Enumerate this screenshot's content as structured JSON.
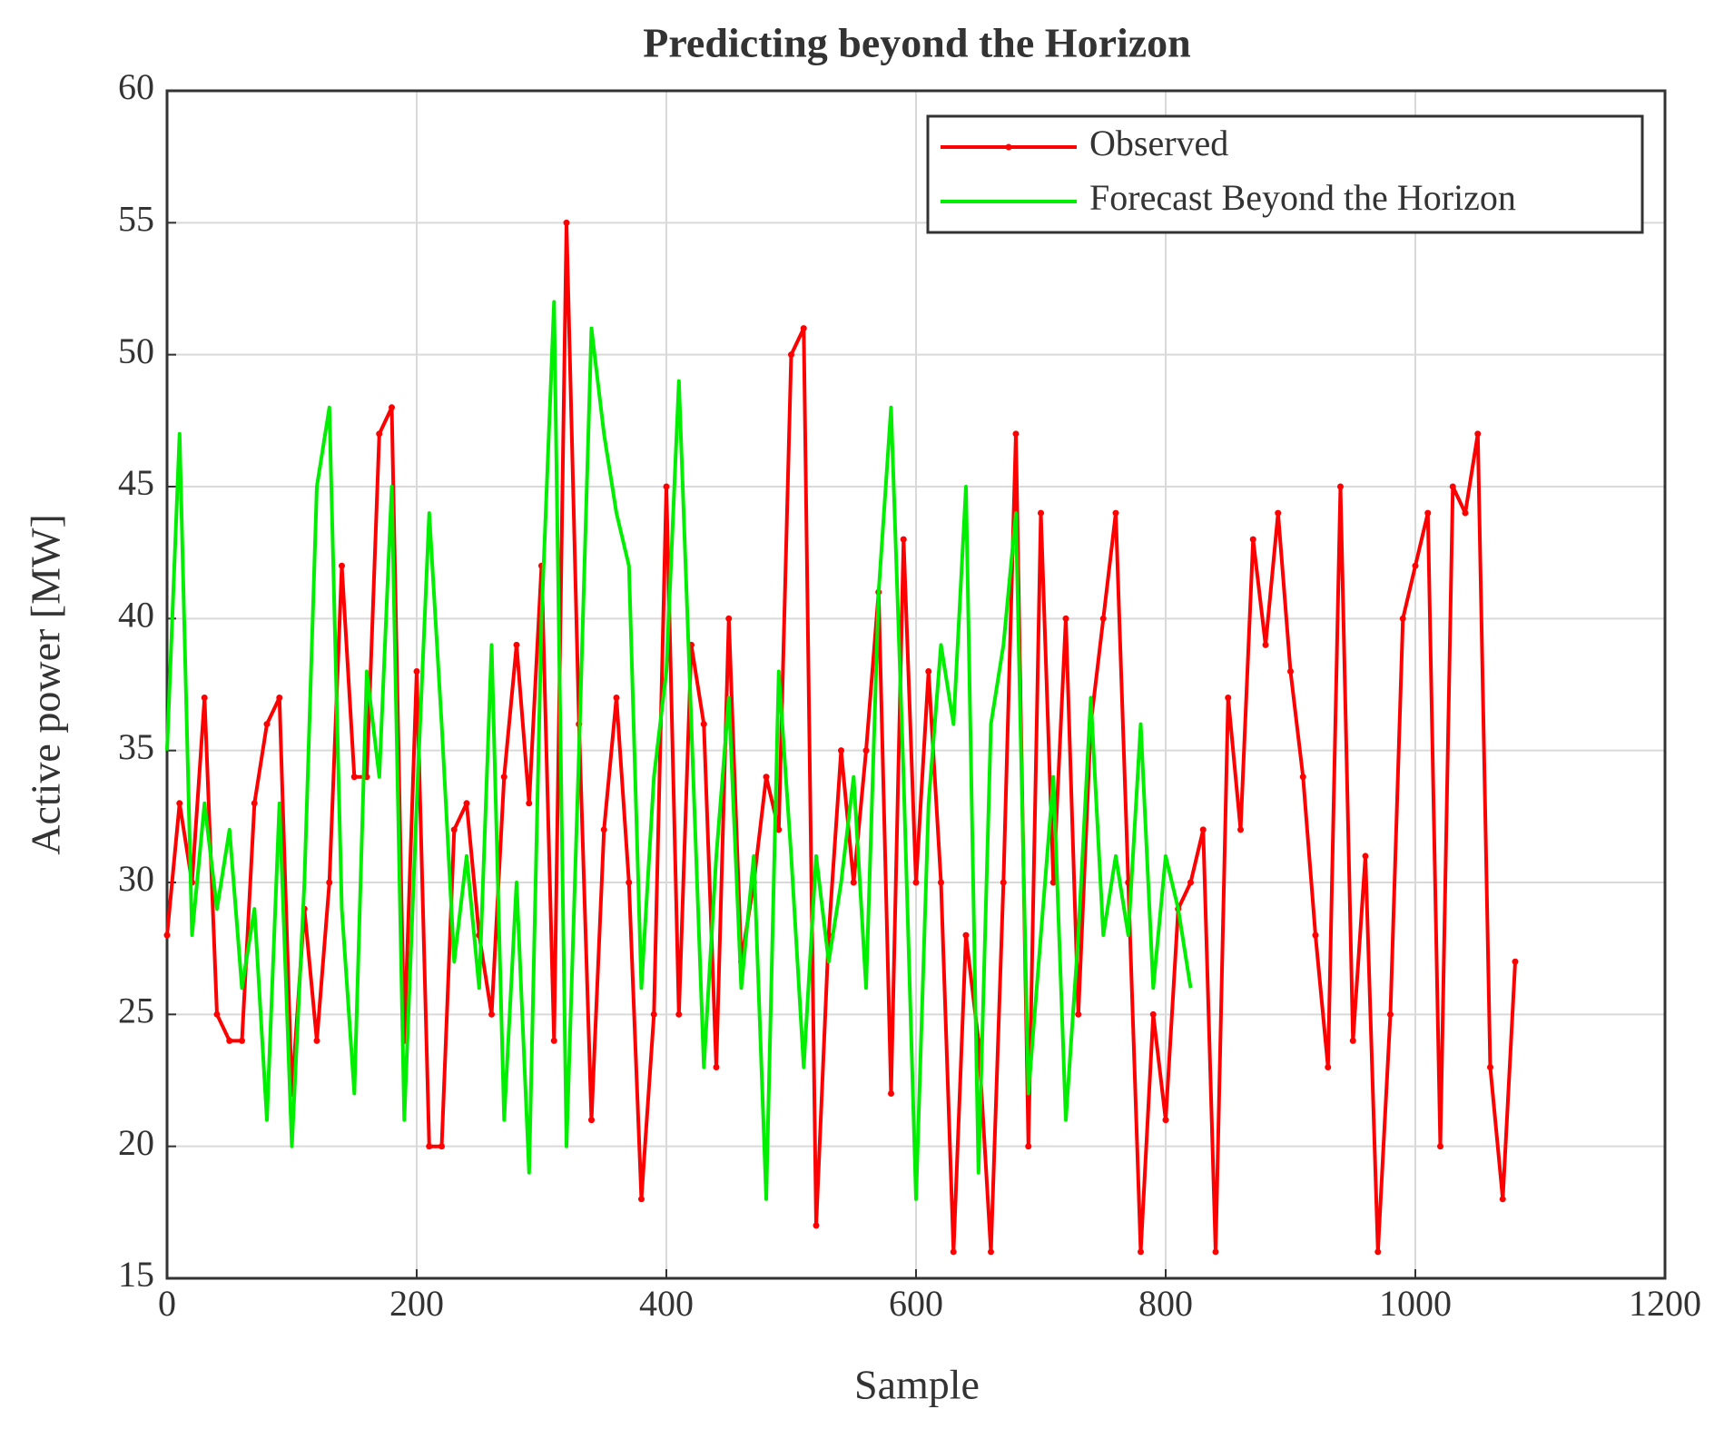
{
  "chart_data": {
    "type": "line",
    "title": "Predicting beyond the Horizon",
    "xlabel": "Sample",
    "ylabel": "Active power  [MW]",
    "x": [
      0,
      10,
      20,
      30,
      40,
      50,
      60,
      70,
      80,
      90,
      100,
      110,
      120,
      130,
      140,
      150,
      160,
      170,
      180,
      190,
      200,
      210,
      220,
      230,
      240,
      250,
      260,
      270,
      280,
      290,
      300,
      310,
      320,
      330,
      340,
      350,
      360,
      370,
      380,
      390,
      400,
      410,
      420,
      430,
      440,
      450,
      460,
      470,
      480,
      490,
      500,
      510,
      520,
      530,
      540,
      550,
      560,
      570,
      580,
      590,
      600,
      610,
      620,
      630,
      640,
      650,
      660,
      670,
      680,
      690,
      700,
      710,
      720,
      730,
      740,
      750,
      760,
      770,
      780,
      790,
      800,
      810,
      820,
      830,
      840,
      850,
      860,
      870,
      880,
      890,
      900,
      910,
      920,
      930,
      940,
      950,
      960,
      970,
      980,
      990,
      1000,
      1010,
      1020,
      1030,
      1040,
      1050,
      1060,
      1070,
      1080
    ],
    "series": [
      {
        "name": "Observed",
        "color": "#ff0000",
        "marker": true,
        "values": [
          28,
          33,
          30,
          37,
          25,
          24,
          24,
          33,
          36,
          37,
          22,
          29,
          24,
          30,
          42,
          34,
          34,
          47,
          48,
          24,
          38,
          20,
          20,
          32,
          33,
          28,
          25,
          34,
          39,
          33,
          42,
          24,
          55,
          36,
          21,
          32,
          37,
          30,
          18,
          25,
          45,
          25,
          39,
          36,
          23,
          40,
          27,
          30,
          34,
          32,
          50,
          51,
          17,
          28,
          35,
          30,
          35,
          41,
          22,
          43,
          30,
          38,
          30,
          16,
          28,
          24,
          16,
          30,
          47,
          20,
          44,
          30,
          40,
          25,
          36,
          40,
          44,
          30,
          16,
          25,
          21,
          29,
          30,
          32,
          16,
          37,
          32,
          43,
          39,
          44,
          38,
          34,
          28,
          23,
          45,
          24,
          31,
          16,
          25,
          40,
          42,
          44,
          20,
          45,
          44,
          47,
          23,
          18,
          27
        ]
      },
      {
        "name": "Forecast Beyond the Horizon",
        "color": "#00ee00",
        "marker": false,
        "values": [
          35,
          47,
          28,
          33,
          29,
          32,
          26,
          29,
          21,
          33,
          20,
          30,
          45,
          48,
          29,
          22,
          38,
          34,
          45,
          21,
          33,
          44,
          36,
          27,
          31,
          26,
          39,
          21,
          30,
          19,
          40,
          52,
          20,
          35,
          51,
          47,
          44,
          42,
          26,
          34,
          38,
          49,
          36,
          23,
          31,
          37,
          26,
          31,
          18,
          38,
          31,
          23,
          31,
          27,
          30,
          34,
          26,
          41,
          48,
          34,
          18,
          33,
          39,
          36,
          45,
          19,
          36,
          39,
          44,
          22,
          28,
          34,
          21,
          28,
          37,
          28,
          31,
          28,
          36,
          26,
          31,
          29,
          26,
          null,
          null,
          null,
          null,
          null,
          null,
          null,
          null,
          null,
          null,
          null,
          null,
          null,
          null,
          null,
          null,
          null,
          null,
          null,
          null,
          null,
          null,
          null,
          null,
          null,
          null
        ]
      }
    ],
    "xlim": [
      0,
      1200
    ],
    "xticks": [
      0,
      200,
      400,
      600,
      800,
      1000,
      1200
    ],
    "ylim": [
      15,
      60
    ],
    "yticks": [
      15,
      20,
      25,
      30,
      35,
      40,
      45,
      50,
      55,
      60
    ],
    "grid": true,
    "legend": "upper right"
  }
}
